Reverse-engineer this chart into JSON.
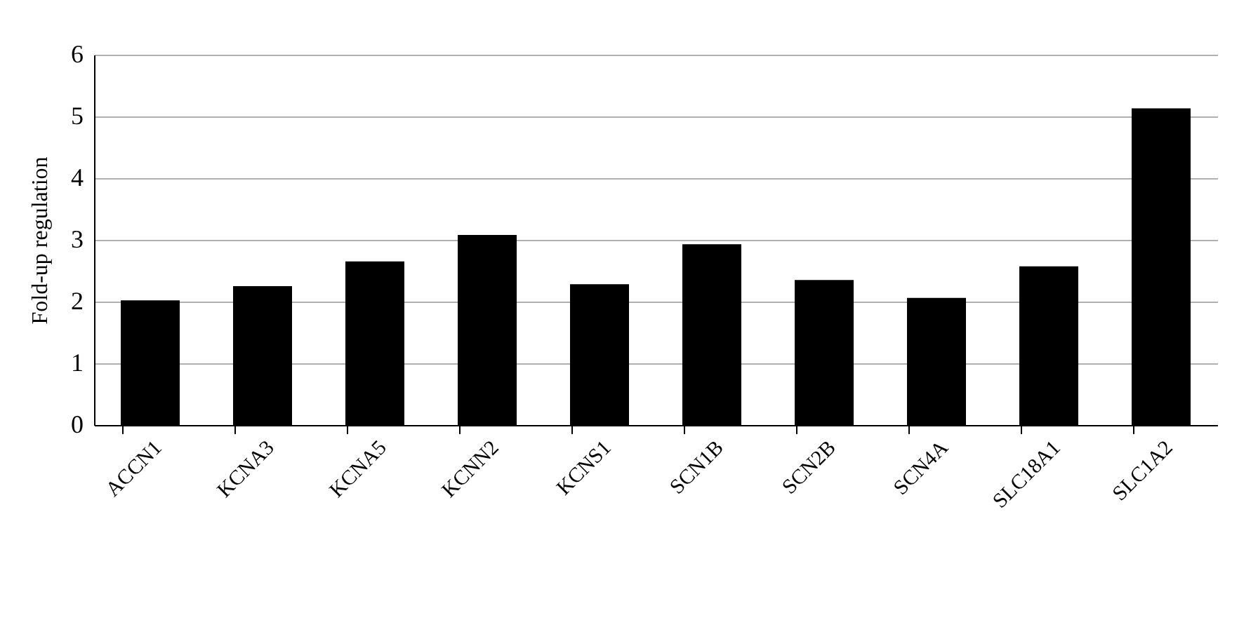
{
  "chart_data": {
    "type": "bar",
    "ylabel": "Fold-up regulation",
    "categories": [
      "ACCN1",
      "KCNA3",
      "KCNA5",
      "KCNN2",
      "KCNS1",
      "SCN1B",
      "SCN2B",
      "SCN4A",
      "SLC18A1",
      "SLC1A2"
    ],
    "values": [
      2.02,
      2.25,
      2.65,
      3.08,
      2.28,
      2.93,
      2.35,
      2.06,
      2.57,
      5.13
    ],
    "color": "#000000",
    "ylim": [
      0,
      6
    ],
    "yticks": [
      0,
      1,
      2,
      3,
      4,
      5,
      6
    ],
    "grid": "y"
  }
}
